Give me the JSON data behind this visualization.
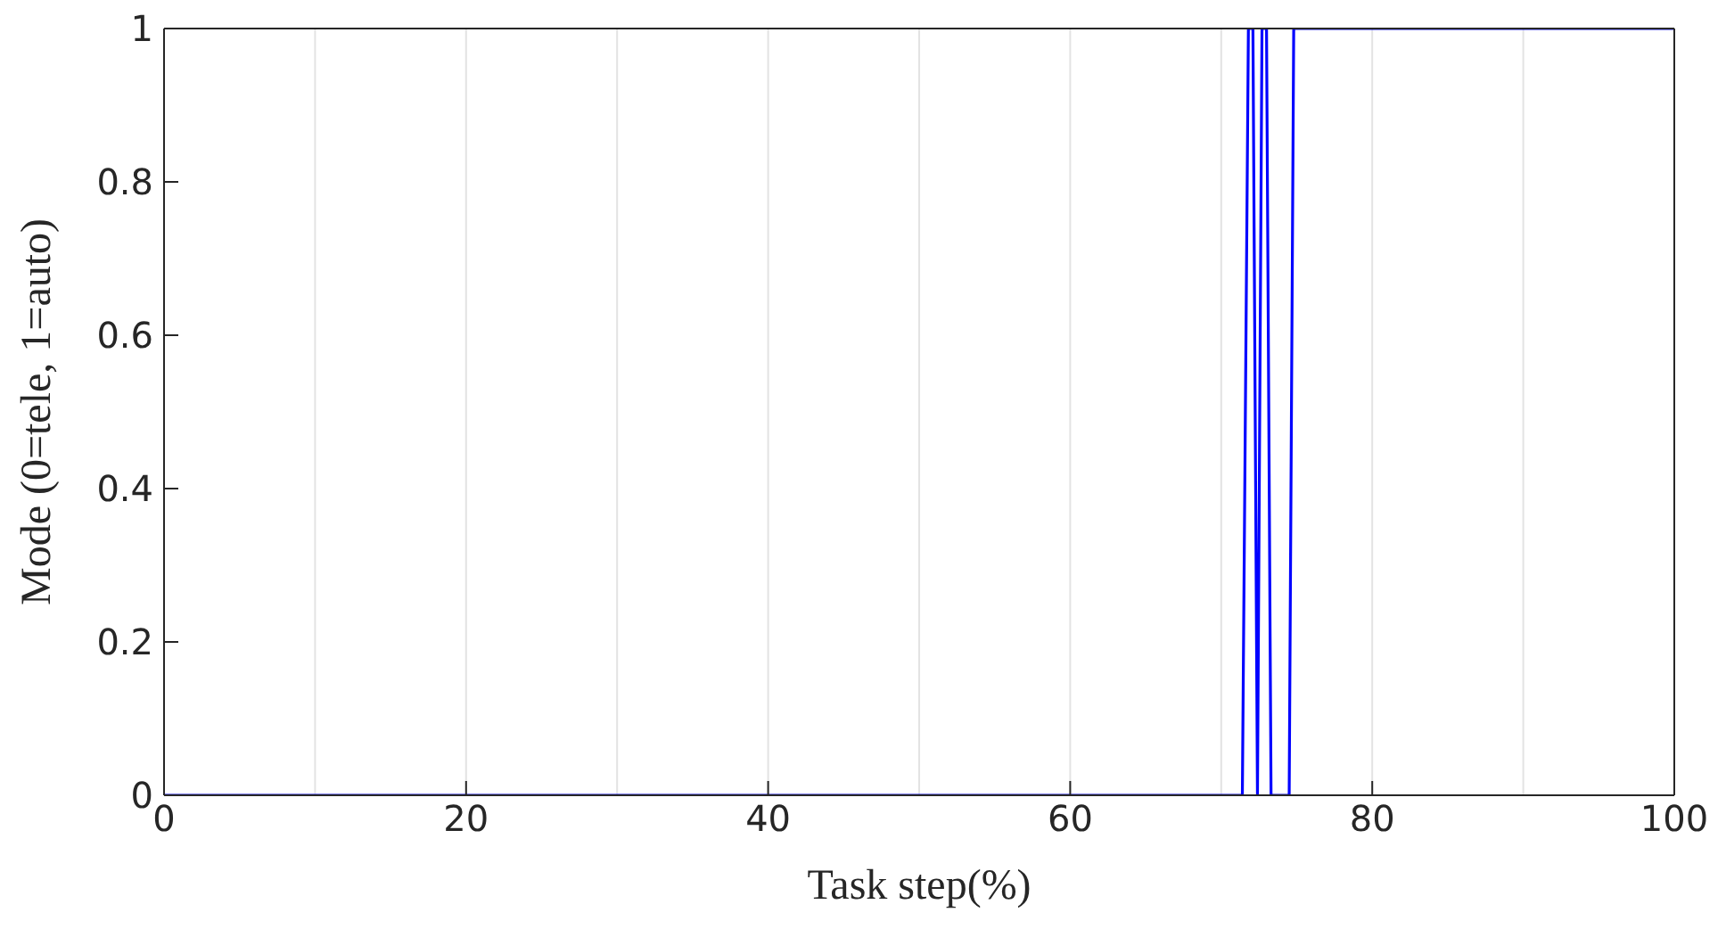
{
  "chart_data": {
    "type": "line",
    "xlabel": "Task step(%)",
    "ylabel": "Mode (0=tele, 1=auto)",
    "x": [
      0,
      71.4,
      71.8,
      72.1,
      72.4,
      72.7,
      73.0,
      73.3,
      74.5,
      74.8,
      100
    ],
    "series": [
      {
        "color": "#0000ff",
        "values": [
          0,
          0,
          1,
          1,
          0,
          1,
          1,
          0,
          0,
          1,
          1
        ]
      }
    ],
    "xlim": [
      0,
      100
    ],
    "xticks": [
      0,
      20,
      40,
      60,
      80,
      100
    ],
    "ylim": [
      0,
      1
    ],
    "yticks": [
      0,
      0.2,
      0.4,
      0.6,
      0.8,
      1
    ],
    "grid": true,
    "marker": "none",
    "line_style": "solid"
  }
}
